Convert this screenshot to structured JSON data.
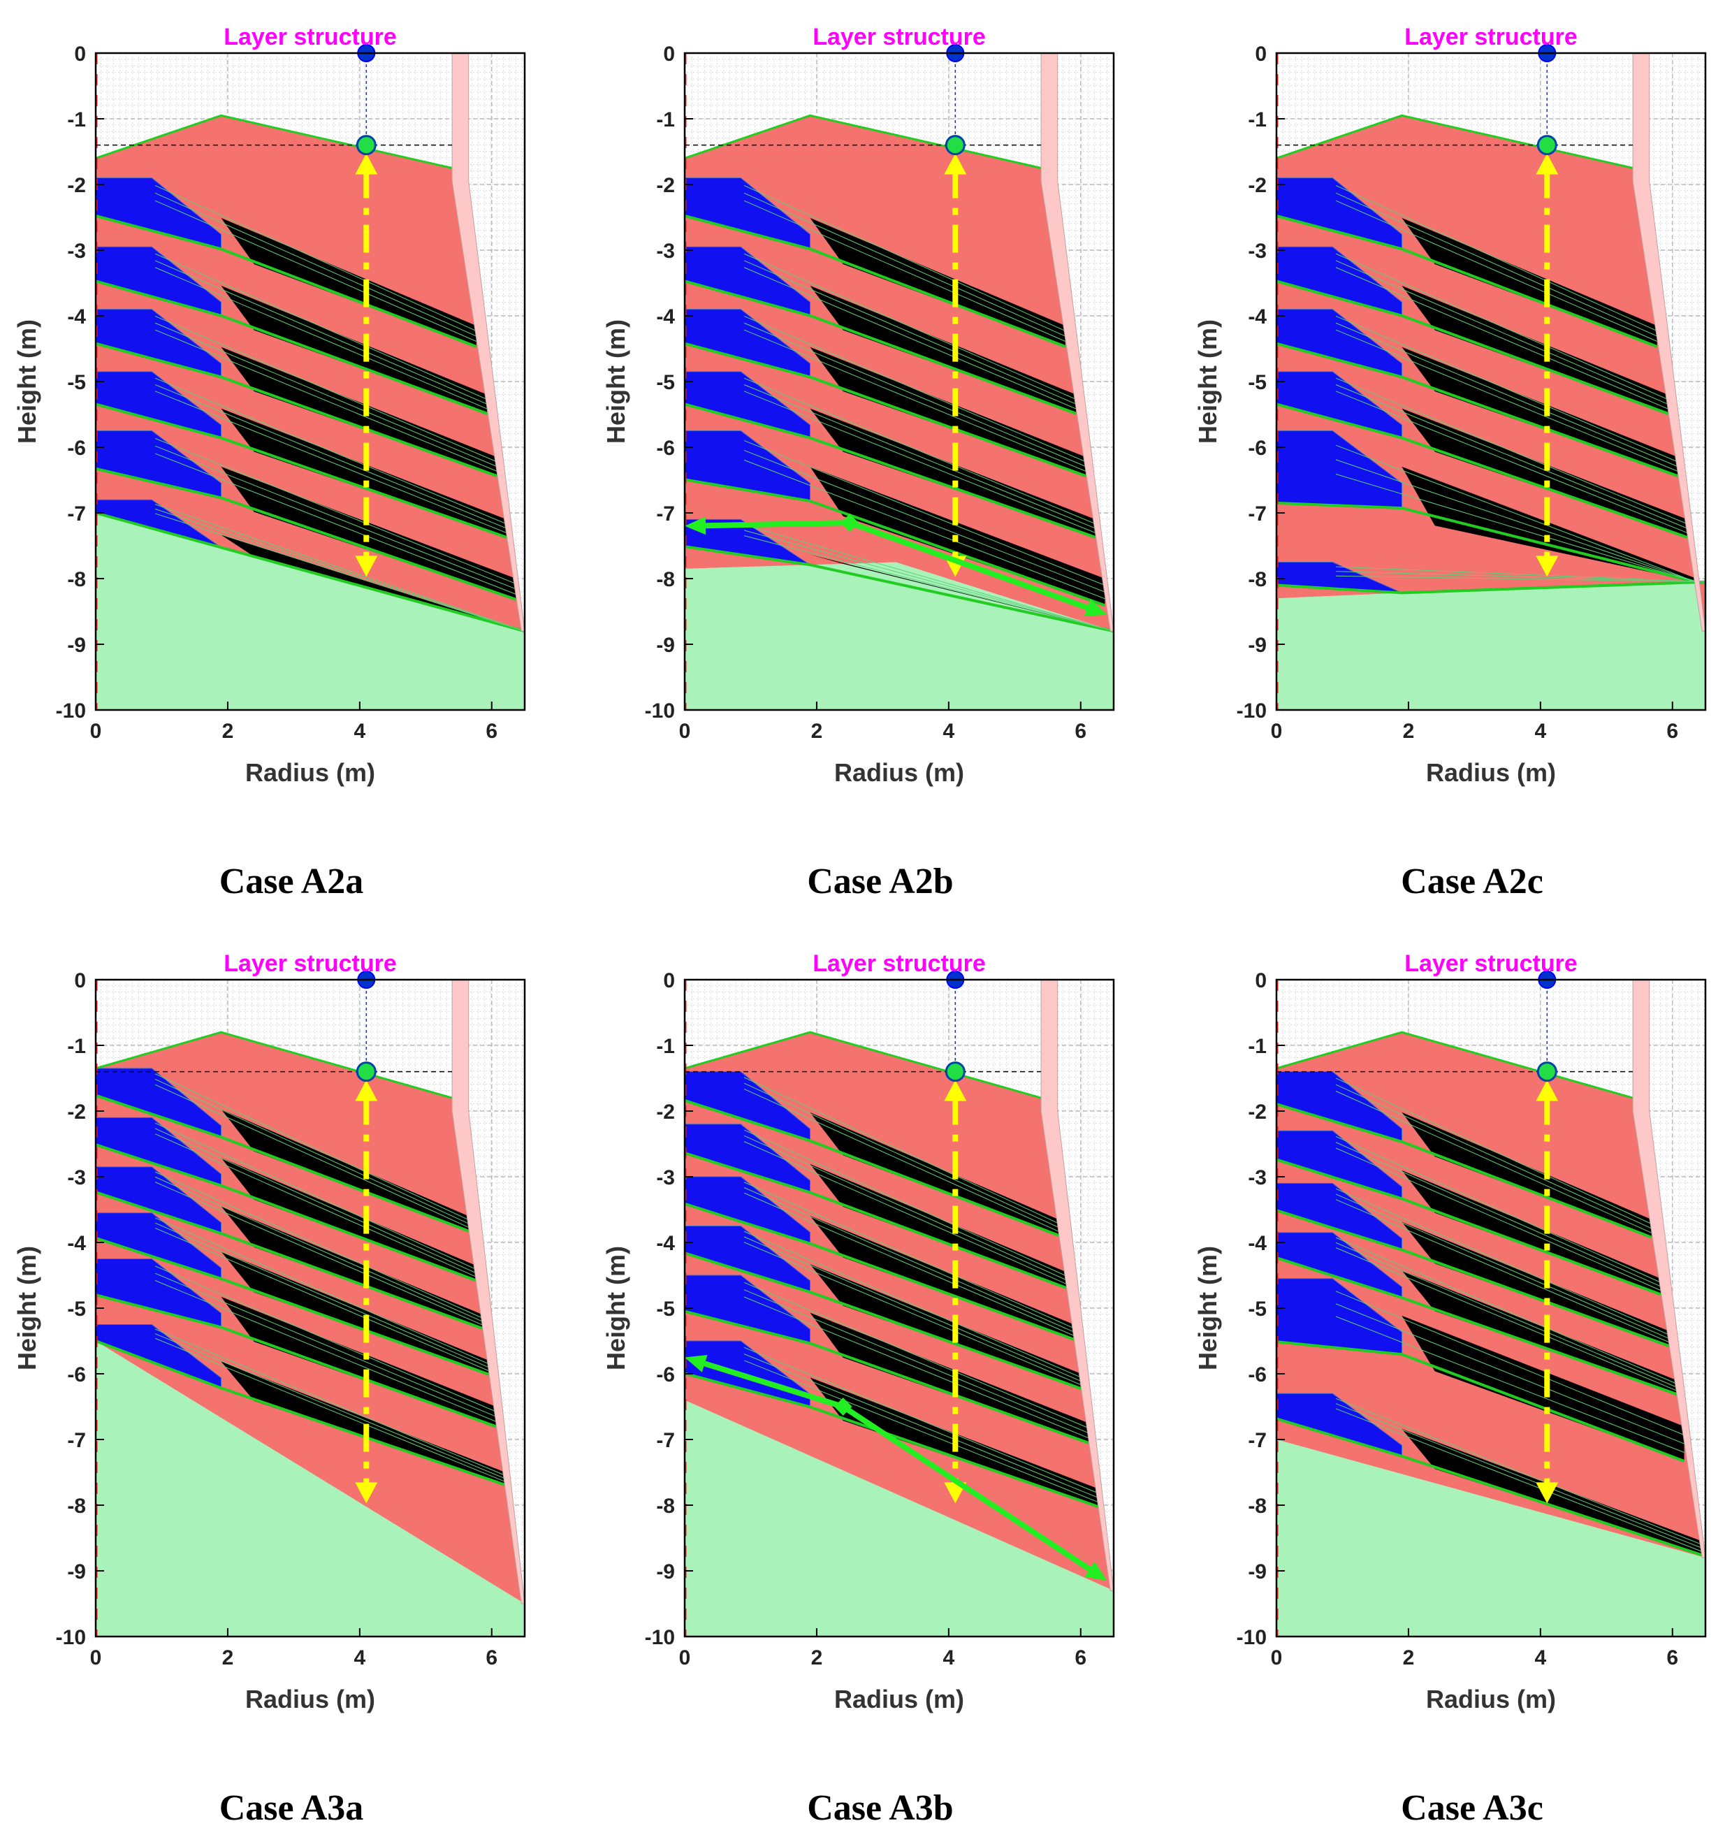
{
  "figure": {
    "panel_title": "Layer structure",
    "xlabel": "Radius (m)",
    "ylabel": "Height (m)",
    "xticks": [
      "0",
      "2",
      "4",
      "6"
    ],
    "yticks": [
      "0",
      "-1",
      "-2",
      "-3",
      "-4",
      "-5",
      "-6",
      "-7",
      "-8",
      "-9",
      "-10"
    ],
    "colors": {
      "title": "#ff00ff",
      "embankment": "#f4736e",
      "drain": "#000000",
      "toe_block": "#1010f0",
      "foundation": "#a9f2b9",
      "layer_line": "#22cc22",
      "wall": "#ffc8c8",
      "probe": "#ffff00",
      "gauge_top": "#0033cc",
      "gauge_mid": "#22dd44",
      "flow_arrow": "#22ee22"
    }
  },
  "chart_data": [
    {
      "type": "area",
      "case_label": "Case A2a",
      "title": "Layer structure",
      "xlabel": "Radius (m)",
      "ylabel": "Height (m)",
      "xlim": [
        0,
        6.5
      ],
      "ylim": [
        -10,
        0
      ],
      "grid": true,
      "crest": {
        "left_height": -1.6,
        "peak": [
          1.9,
          -0.95
        ],
        "right": [
          5.4,
          -1.75
        ]
      },
      "wall": {
        "top_radius": 5.4,
        "bottom_radius": 6.5,
        "bottom_height": -8.8
      },
      "foundation_surface": [
        [
          0,
          -7.0
        ],
        [
          6.5,
          -8.8
        ]
      ],
      "layers": 6,
      "layer_top_heights_at_axis": [
        -1.9,
        -2.95,
        -3.9,
        -4.85,
        -5.75,
        -6.8
      ],
      "gauge": {
        "radius": 4.1,
        "top_height": 0,
        "mid_height": -1.4
      },
      "probe_span": {
        "radius": 4.1,
        "from_height": -1.4,
        "to_height": -8.1
      },
      "flow_arrows": []
    },
    {
      "type": "area",
      "case_label": "Case A2b",
      "title": "Layer structure",
      "xlabel": "Radius (m)",
      "ylabel": "Height (m)",
      "xlim": [
        0,
        6.5
      ],
      "ylim": [
        -10,
        0
      ],
      "grid": true,
      "crest": {
        "left_height": -1.6,
        "peak": [
          1.9,
          -0.95
        ],
        "right": [
          5.4,
          -1.75
        ]
      },
      "wall": {
        "top_radius": 5.4,
        "bottom_radius": 6.5,
        "bottom_height": -8.8
      },
      "foundation_surface": [
        [
          0,
          -7.85
        ],
        [
          3.2,
          -7.75
        ],
        [
          6.5,
          -8.8
        ]
      ],
      "layers": 6,
      "layer_top_heights_at_axis": [
        -1.9,
        -2.95,
        -3.9,
        -4.85,
        -5.75,
        -7.1
      ],
      "gauge": {
        "radius": 4.1,
        "top_height": 0,
        "mid_height": -1.4
      },
      "probe_span": {
        "radius": 4.1,
        "from_height": -1.4,
        "to_height": -8.1
      },
      "flow_arrows": [
        [
          [
            2.5,
            -7.15
          ],
          [
            0.0,
            -7.2
          ]
        ],
        [
          [
            2.5,
            -7.15
          ],
          [
            6.4,
            -8.55
          ]
        ]
      ]
    },
    {
      "type": "area",
      "case_label": "Case A2c",
      "title": "Layer structure",
      "xlabel": "Radius (m)",
      "ylabel": "Height (m)",
      "xlim": [
        0,
        6.5
      ],
      "ylim": [
        -10,
        0
      ],
      "grid": true,
      "crest": {
        "left_height": -1.6,
        "peak": [
          1.9,
          -0.95
        ],
        "right": [
          5.4,
          -1.75
        ]
      },
      "wall": {
        "top_radius": 5.4,
        "bottom_radius": 6.5,
        "bottom_height": -8.8
      },
      "foundation_surface": [
        [
          0,
          -8.3
        ],
        [
          2.3,
          -8.2
        ],
        [
          6.5,
          -8.05
        ]
      ],
      "layers": 6,
      "layer_top_heights_at_axis": [
        -1.9,
        -2.95,
        -3.9,
        -4.85,
        -5.75,
        -7.75
      ],
      "gauge": {
        "radius": 4.1,
        "top_height": 0,
        "mid_height": -1.4
      },
      "probe_span": {
        "radius": 4.1,
        "from_height": -1.4,
        "to_height": -8.1
      },
      "flow_arrows": []
    },
    {
      "type": "area",
      "case_label": "Case A3a",
      "title": "Layer structure",
      "xlabel": "Radius (m)",
      "ylabel": "Height (m)",
      "xlim": [
        0,
        6.5
      ],
      "ylim": [
        -10,
        0
      ],
      "grid": true,
      "crest": {
        "left_height": -1.35,
        "peak": [
          1.9,
          -0.8
        ],
        "right": [
          5.4,
          -1.8
        ]
      },
      "wall": {
        "top_radius": 5.4,
        "bottom_radius": 6.5,
        "bottom_height": -9.5
      },
      "foundation_surface": [
        [
          0,
          -5.5
        ],
        [
          6.5,
          -9.5
        ]
      ],
      "layers": 6,
      "layer_top_heights_at_axis": [
        -1.35,
        -2.1,
        -2.85,
        -3.55,
        -4.25,
        -5.25
      ],
      "gauge": {
        "radius": 4.1,
        "top_height": 0,
        "mid_height": -1.4
      },
      "probe_span": {
        "radius": 4.1,
        "from_height": -1.4,
        "to_height": -8.1
      },
      "flow_arrows": []
    },
    {
      "type": "area",
      "case_label": "Case A3b",
      "title": "Layer structure",
      "xlabel": "Radius (m)",
      "ylabel": "Height (m)",
      "xlim": [
        0,
        6.5
      ],
      "ylim": [
        -10,
        0
      ],
      "grid": true,
      "crest": {
        "left_height": -1.35,
        "peak": [
          1.9,
          -0.8
        ],
        "right": [
          5.4,
          -1.8
        ]
      },
      "wall": {
        "top_radius": 5.4,
        "bottom_radius": 6.5,
        "bottom_height": -9.3
      },
      "foundation_surface": [
        [
          0,
          -6.4
        ],
        [
          6.5,
          -9.3
        ]
      ],
      "layers": 6,
      "layer_top_heights_at_axis": [
        -1.4,
        -2.2,
        -3.0,
        -3.75,
        -4.5,
        -5.5
      ],
      "gauge": {
        "radius": 4.1,
        "top_height": 0,
        "mid_height": -1.4
      },
      "probe_span": {
        "radius": 4.1,
        "from_height": -1.4,
        "to_height": -8.1
      },
      "flow_arrows": [
        [
          [
            2.4,
            -6.5
          ],
          [
            0.0,
            -5.75
          ]
        ],
        [
          [
            2.4,
            -6.5
          ],
          [
            6.4,
            -9.15
          ]
        ]
      ]
    },
    {
      "type": "area",
      "case_label": "Case A3c",
      "title": "Layer structure",
      "xlabel": "Radius (m)",
      "ylabel": "Height (m)",
      "xlim": [
        0,
        6.5
      ],
      "ylim": [
        -10,
        0
      ],
      "grid": true,
      "crest": {
        "left_height": -1.35,
        "peak": [
          1.9,
          -0.8
        ],
        "right": [
          5.4,
          -1.8
        ]
      },
      "wall": {
        "top_radius": 5.4,
        "bottom_radius": 6.5,
        "bottom_height": -8.8
      },
      "foundation_surface": [
        [
          0,
          -7.0
        ],
        [
          6.5,
          -8.8
        ]
      ],
      "layers": 6,
      "layer_top_heights_at_axis": [
        -1.4,
        -2.3,
        -3.1,
        -3.85,
        -4.55,
        -6.3
      ],
      "gauge": {
        "radius": 4.1,
        "top_height": 0,
        "mid_height": -1.4
      },
      "probe_span": {
        "radius": 4.1,
        "from_height": -1.4,
        "to_height": -8.1
      },
      "flow_arrows": []
    }
  ]
}
